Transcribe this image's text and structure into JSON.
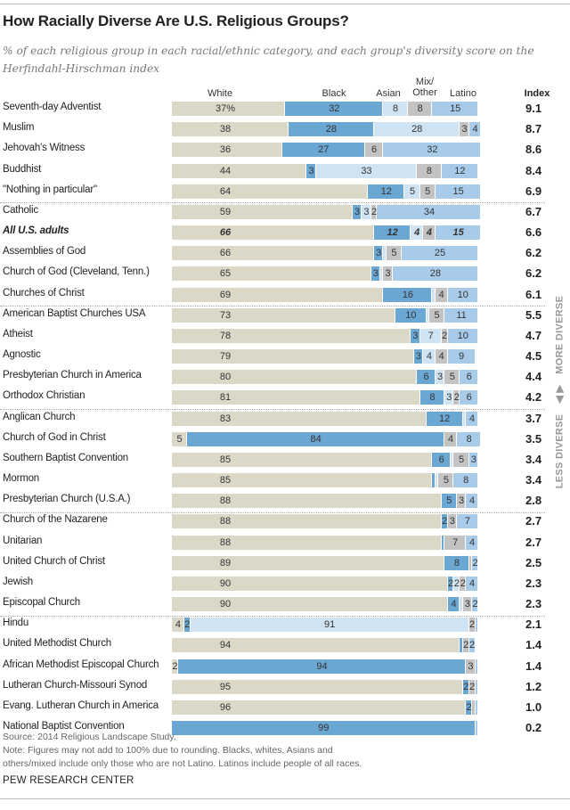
{
  "chart_data": {
    "type": "bar",
    "orientation": "horizontal",
    "stacked": true,
    "title": "How Racially Diverse Are U.S. Religious Groups?",
    "subtitle": "% of each religious group in each racial/ethnic category, and each group's diversity score on the Herfindahl-Hirschman index",
    "series_names": [
      "White",
      "Black",
      "Asian",
      "Mix/ Other",
      "Latino"
    ],
    "index_header": "Index",
    "colors": [
      "#dcd8c8",
      "#6ba7d3",
      "#cfe3f3",
      "#c3c3c3",
      "#a7cbe9"
    ],
    "xlim": [
      0,
      100
    ],
    "categories": [
      {
        "name": "Seventh-day Adventist",
        "values": [
          37,
          32,
          8,
          8,
          15
        ],
        "labels": [
          "37%",
          "32",
          "8",
          "8",
          "15"
        ],
        "index": "9.1"
      },
      {
        "name": "Muslim",
        "values": [
          38,
          28,
          28,
          3,
          4
        ],
        "labels": [
          "38",
          "28",
          "28",
          "3",
          "4"
        ],
        "index": "8.7"
      },
      {
        "name": "Jehovah's Witness",
        "values": [
          36,
          27,
          0,
          6,
          32
        ],
        "labels": [
          "36",
          "27",
          "",
          "6",
          "32"
        ],
        "index": "8.6"
      },
      {
        "name": "Buddhist",
        "values": [
          44,
          3,
          33,
          8,
          12
        ],
        "labels": [
          "44",
          "3",
          "33",
          "8",
          "12"
        ],
        "index": "8.4"
      },
      {
        "name": "\"Nothing in particular\"",
        "values": [
          64,
          12,
          5,
          5,
          15
        ],
        "labels": [
          "64",
          "12",
          "5",
          "5",
          "15"
        ],
        "index": "6.9"
      },
      {
        "name": "Catholic",
        "values": [
          59,
          3,
          3,
          2,
          34
        ],
        "labels": [
          "59",
          "3",
          "3",
          "2",
          "34"
        ],
        "index": "6.7"
      },
      {
        "name": "All U.S. adults",
        "values": [
          66,
          12,
          4,
          4,
          15
        ],
        "labels": [
          "66",
          "12",
          "4",
          "4",
          "15"
        ],
        "index": "6.6",
        "emphasis": true
      },
      {
        "name": "Assemblies of God",
        "values": [
          66,
          3,
          1,
          5,
          25
        ],
        "labels": [
          "66",
          "3",
          "",
          "5",
          "25"
        ],
        "index": "6.2"
      },
      {
        "name": "Church of God (Cleveland, Tenn.)",
        "values": [
          65,
          3,
          1,
          3,
          28
        ],
        "labels": [
          "65",
          "3",
          "",
          "3",
          "28"
        ],
        "index": "6.2"
      },
      {
        "name": "Churches of Christ",
        "values": [
          69,
          16,
          1,
          4,
          10
        ],
        "labels": [
          "69",
          "16",
          "",
          "4",
          "10"
        ],
        "index": "6.1"
      },
      {
        "name": "American Baptist Churches USA",
        "values": [
          73,
          10,
          1,
          5,
          11
        ],
        "labels": [
          "73",
          "10",
          "",
          "5",
          "11"
        ],
        "index": "5.5"
      },
      {
        "name": "Atheist",
        "values": [
          78,
          3,
          7,
          2,
          10
        ],
        "labels": [
          "78",
          "3",
          "7",
          "2",
          "10"
        ],
        "index": "4.7"
      },
      {
        "name": "Agnostic",
        "values": [
          79,
          3,
          4,
          4,
          9
        ],
        "labels": [
          "79",
          "3",
          "4",
          "4",
          "9"
        ],
        "index": "4.5"
      },
      {
        "name": "Presbyterian Church in America",
        "values": [
          80,
          6,
          3,
          5,
          6
        ],
        "labels": [
          "80",
          "6",
          "3",
          "5",
          "6"
        ],
        "index": "4.4"
      },
      {
        "name": "Orthodox Christian",
        "values": [
          81,
          8,
          3,
          2,
          6
        ],
        "labels": [
          "81",
          "8",
          "3",
          "2",
          "6"
        ],
        "index": "4.2"
      },
      {
        "name": "Anglican Church",
        "values": [
          83,
          12,
          1,
          0,
          4
        ],
        "labels": [
          "83",
          "12",
          "",
          "",
          "4"
        ],
        "index": "3.7"
      },
      {
        "name": "Church of God in Christ",
        "values": [
          5,
          84,
          0,
          4,
          8
        ],
        "labels": [
          "5",
          "84",
          "",
          "4",
          "8"
        ],
        "index": "3.5"
      },
      {
        "name": "Southern Baptist Convention",
        "values": [
          85,
          6,
          1,
          5,
          3
        ],
        "labels": [
          "85",
          "6",
          "",
          "5",
          "3"
        ],
        "index": "3.4"
      },
      {
        "name": "Mormon",
        "values": [
          85,
          1,
          1,
          5,
          8
        ],
        "labels": [
          "85",
          "",
          "",
          "5",
          "8"
        ],
        "index": "3.4"
      },
      {
        "name": "Presbyterian Church (U.S.A.)",
        "values": [
          88,
          5,
          0,
          3,
          4
        ],
        "labels": [
          "88",
          "5",
          "",
          "3",
          "4"
        ],
        "index": "2.8"
      },
      {
        "name": "Church of the Nazarene",
        "values": [
          88,
          2,
          0,
          3,
          7
        ],
        "labels": [
          "88",
          "2",
          "",
          "3",
          "7"
        ],
        "index": "2.7"
      },
      {
        "name": "Unitarian",
        "values": [
          88,
          1,
          0,
          7,
          4
        ],
        "labels": [
          "88",
          "",
          "",
          "7",
          "4"
        ],
        "index": "2.7"
      },
      {
        "name": "United Church of Christ",
        "values": [
          89,
          8,
          0,
          1,
          2
        ],
        "labels": [
          "89",
          "8",
          "",
          "",
          "2"
        ],
        "index": "2.5"
      },
      {
        "name": "Jewish",
        "values": [
          90,
          2,
          2,
          2,
          4
        ],
        "labels": [
          "90",
          "2",
          "2",
          "2",
          "4"
        ],
        "index": "2.3"
      },
      {
        "name": "Episcopal Church",
        "values": [
          90,
          4,
          1,
          3,
          2
        ],
        "labels": [
          "90",
          "4",
          "",
          "3",
          "2"
        ],
        "index": "2.3"
      },
      {
        "name": "Hindu",
        "values": [
          4,
          2,
          91,
          2,
          1
        ],
        "labels": [
          "4",
          "2",
          "91",
          "2",
          ""
        ],
        "index": "2.1"
      },
      {
        "name": "United Methodist Church",
        "values": [
          94,
          1,
          0,
          2,
          2
        ],
        "labels": [
          "94",
          "",
          "",
          "2",
          "2"
        ],
        "index": "1.4"
      },
      {
        "name": "African Methodist Episcopal Church",
        "values": [
          2,
          94,
          0,
          3,
          1
        ],
        "labels": [
          "2",
          "94",
          "",
          "3",
          ""
        ],
        "index": "1.4"
      },
      {
        "name": "Lutheran Church-Missouri Synod",
        "values": [
          95,
          2,
          0,
          2,
          1
        ],
        "labels": [
          "95",
          "2",
          "",
          "2",
          ""
        ],
        "index": "1.2"
      },
      {
        "name": "Evang. Lutheran Church in America",
        "values": [
          96,
          2,
          0,
          1,
          1
        ],
        "labels": [
          "96",
          "2",
          "",
          "",
          ""
        ],
        "index": "1.0"
      },
      {
        "name": "National Baptist Convention",
        "values": [
          0,
          99,
          0,
          0,
          1
        ],
        "labels": [
          "",
          "99",
          "",
          "",
          ""
        ],
        "index": "0.2"
      }
    ],
    "group_breaks_after": [
      5,
      10,
      15,
      20,
      25
    ],
    "side_axis": {
      "more": "MORE DIVERSE",
      "less": "LESS DIVERSE"
    }
  },
  "footer": {
    "source": "Source: 2014 Religious Landscape Study.",
    "note_line1": "Note: Figures may not add to 100% due to rounding. Blacks, whites, Asians and",
    "note_line2": "others/mixed include only those who are not Latino. Latinos include people of all races.",
    "brand": "PEW RESEARCH CENTER"
  }
}
